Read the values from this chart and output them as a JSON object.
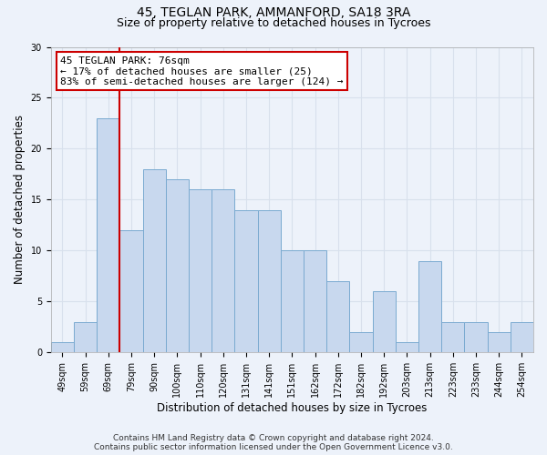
{
  "title_line1": "45, TEGLAN PARK, AMMANFORD, SA18 3RA",
  "title_line2": "Size of property relative to detached houses in Tycroes",
  "xlabel": "Distribution of detached houses by size in Tycroes",
  "ylabel": "Number of detached properties",
  "bar_color": "#c8d8ee",
  "bar_edge_color": "#7aaad0",
  "bar_values": [
    1,
    3,
    23,
    12,
    18,
    17,
    16,
    16,
    14,
    14,
    10,
    10,
    7,
    2,
    6,
    1,
    9,
    3,
    3,
    2,
    3
  ],
  "x_labels": [
    "49sqm",
    "59sqm",
    "69sqm",
    "79sqm",
    "90sqm",
    "100sqm",
    "110sqm",
    "120sqm",
    "131sqm",
    "141sqm",
    "151sqm",
    "162sqm",
    "172sqm",
    "182sqm",
    "192sqm",
    "203sqm",
    "213sqm",
    "223sqm",
    "233sqm",
    "244sqm",
    "254sqm"
  ],
  "ylim": [
    0,
    30
  ],
  "yticks": [
    0,
    5,
    10,
    15,
    20,
    25,
    30
  ],
  "vline_x": 2.5,
  "annotation_text": "45 TEGLAN PARK: 76sqm\n← 17% of detached houses are smaller (25)\n83% of semi-detached houses are larger (124) →",
  "annotation_box_color": "#ffffff",
  "annotation_box_edge": "#cc0000",
  "vline_color": "#cc0000",
  "footer_line1": "Contains HM Land Registry data © Crown copyright and database right 2024.",
  "footer_line2": "Contains public sector information licensed under the Open Government Licence v3.0.",
  "background_color": "#edf2fa",
  "grid_color": "#d8e0ec",
  "title_fontsize": 10,
  "subtitle_fontsize": 9,
  "axis_label_fontsize": 8.5,
  "tick_fontsize": 7,
  "footer_fontsize": 6.5,
  "annotation_fontsize": 8
}
